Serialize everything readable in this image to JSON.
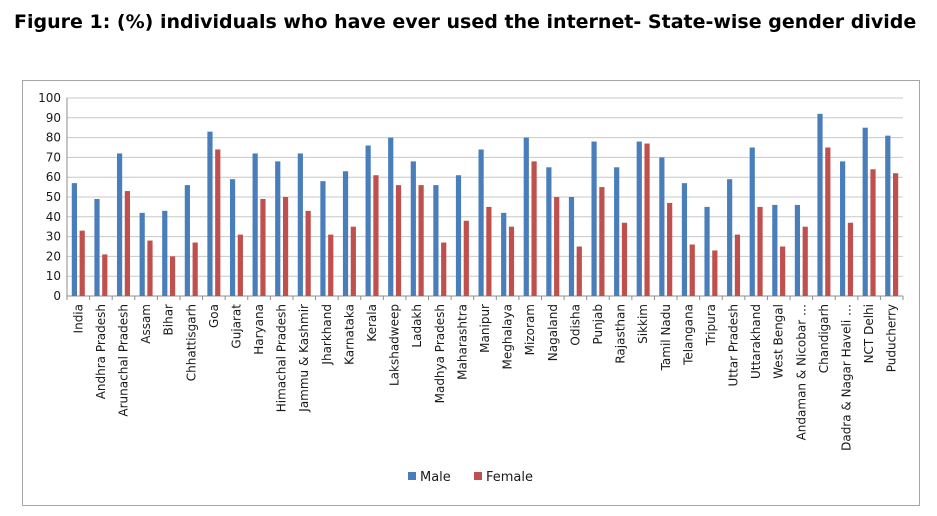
{
  "figure_title": "Figure 1: (%) individuals who have ever used the internet- State-wise gender divide",
  "colors": {
    "male": "#4a7ebb",
    "female": "#c0504d",
    "grid": "#c8c8c8",
    "axis": "#8c8c8c"
  },
  "chart_data": {
    "type": "bar",
    "title": "",
    "xlabel": "",
    "ylabel": "",
    "ylim": [
      0,
      100
    ],
    "yticks": [
      "0",
      "10",
      "20",
      "30",
      "40",
      "50",
      "60",
      "70",
      "80",
      "90",
      "100"
    ],
    "grid": true,
    "legend_position": "bottom",
    "categories": [
      "India",
      "Andhra Pradesh",
      "Arunachal Pradesh",
      "Assam",
      "Bihar",
      "Chhattisgarh",
      "Goa",
      "Gujarat",
      "Haryana",
      "Himachal Pradesh",
      "Jammu & Kashmir",
      "Jharkhand",
      "Karnataka",
      "Kerala",
      "Lakshadweep",
      "Ladakh",
      "Madhya Pradesh",
      "Maharashtra",
      "Manipur",
      "Meghalaya",
      "Mizoram",
      "Nagaland",
      "Odisha",
      "Punjab",
      "Rajasthan",
      "Sikkim",
      "Tamil Nadu",
      "Telangana",
      "Tripura",
      "Uttar Pradesh",
      "Uttarakhand",
      "West Bengal",
      "Andaman & Nicobar …",
      "Chandigarh",
      "Dadra & Nagar Haveli …",
      "NCT Delhi",
      "Puducherry"
    ],
    "series": [
      {
        "name": "Male",
        "values": [
          57,
          49,
          72,
          42,
          43,
          56,
          83,
          59,
          72,
          68,
          72,
          58,
          63,
          76,
          80,
          68,
          56,
          61,
          74,
          42,
          80,
          65,
          50,
          78,
          65,
          78,
          70,
          57,
          45,
          59,
          75,
          46,
          46,
          92,
          68,
          85,
          81
        ]
      },
      {
        "name": "Female",
        "values": [
          33,
          21,
          53,
          28,
          20,
          27,
          74,
          31,
          49,
          50,
          43,
          31,
          35,
          61,
          56,
          56,
          27,
          38,
          45,
          35,
          68,
          50,
          25,
          55,
          37,
          77,
          47,
          26,
          23,
          31,
          45,
          25,
          35,
          75,
          37,
          64,
          62
        ]
      }
    ]
  }
}
